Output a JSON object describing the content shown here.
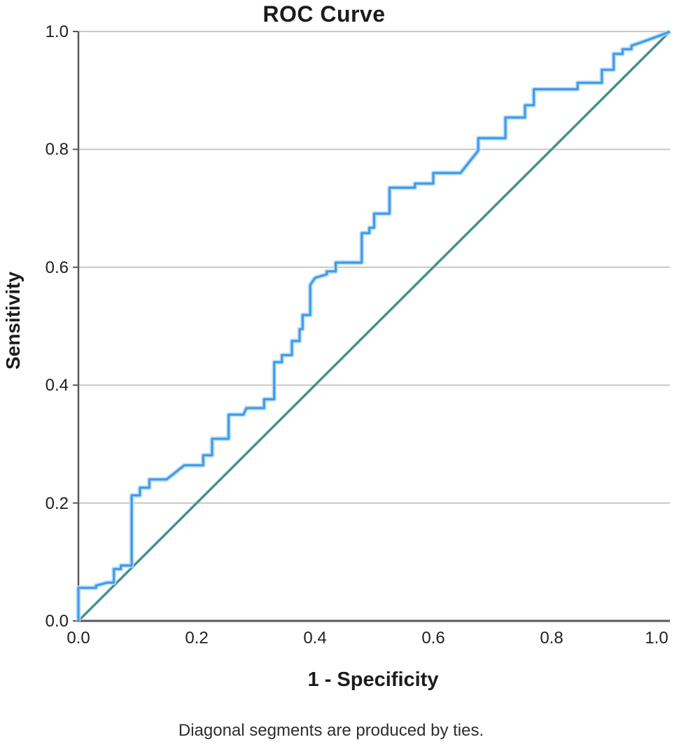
{
  "title": "ROC Curve",
  "footnote": "Diagonal segments are produced by ties.",
  "colors": {
    "roc_line": "#3f9be8",
    "roc_halo": "#b8dcf8",
    "reference_line": "#3e8984",
    "reference_halo": "#9fc8c5",
    "gridline": "#c7c7c9",
    "axis_line": "#57585a",
    "text": "#1c1c1c",
    "background": "#ffffff"
  },
  "chart_data": {
    "type": "line",
    "title": "ROC Curve",
    "xlabel": "1 - Specificity",
    "ylabel": "Sensitivity",
    "footnote": "Diagonal segments are produced by ties.",
    "xlim": [
      0.0,
      1.0
    ],
    "ylim": [
      0.0,
      1.0
    ],
    "x_ticks": [
      0.0,
      0.2,
      0.4,
      0.6,
      0.8,
      1.0
    ],
    "y_ticks": [
      0.0,
      0.2,
      0.4,
      0.6,
      0.8,
      1.0
    ],
    "x_tick_labels": [
      "0.0",
      "0.2",
      "0.4",
      "0.6",
      "0.8",
      "1.0"
    ],
    "y_tick_labels": [
      "0.0",
      "0.2",
      "0.4",
      "0.6",
      "0.8",
      "1.0"
    ],
    "grid": "horizontal gridlines at y ticks",
    "legend": "none",
    "series": [
      {
        "name": "ROC curve (step function)",
        "color": "#3f9be8",
        "points": [
          [
            0.0,
            0.0
          ],
          [
            0.0,
            0.056
          ],
          [
            0.03,
            0.056
          ],
          [
            0.03,
            0.06
          ],
          [
            0.049,
            0.065
          ],
          [
            0.06,
            0.065
          ],
          [
            0.06,
            0.088
          ],
          [
            0.072,
            0.088
          ],
          [
            0.072,
            0.094
          ],
          [
            0.09,
            0.094
          ],
          [
            0.09,
            0.213
          ],
          [
            0.104,
            0.213
          ],
          [
            0.104,
            0.226
          ],
          [
            0.12,
            0.226
          ],
          [
            0.12,
            0.24
          ],
          [
            0.149,
            0.24
          ],
          [
            0.179,
            0.264
          ],
          [
            0.211,
            0.264
          ],
          [
            0.211,
            0.281
          ],
          [
            0.226,
            0.281
          ],
          [
            0.226,
            0.309
          ],
          [
            0.254,
            0.309
          ],
          [
            0.254,
            0.35
          ],
          [
            0.279,
            0.35
          ],
          [
            0.284,
            0.361
          ],
          [
            0.314,
            0.361
          ],
          [
            0.314,
            0.376
          ],
          [
            0.331,
            0.376
          ],
          [
            0.331,
            0.439
          ],
          [
            0.344,
            0.439
          ],
          [
            0.344,
            0.451
          ],
          [
            0.361,
            0.451
          ],
          [
            0.361,
            0.475
          ],
          [
            0.374,
            0.475
          ],
          [
            0.374,
            0.495
          ],
          [
            0.379,
            0.495
          ],
          [
            0.379,
            0.519
          ],
          [
            0.392,
            0.519
          ],
          [
            0.392,
            0.57
          ],
          [
            0.4,
            0.582
          ],
          [
            0.42,
            0.588
          ],
          [
            0.42,
            0.593
          ],
          [
            0.435,
            0.593
          ],
          [
            0.435,
            0.608
          ],
          [
            0.479,
            0.608
          ],
          [
            0.479,
            0.658
          ],
          [
            0.492,
            0.658
          ],
          [
            0.492,
            0.667
          ],
          [
            0.5,
            0.667
          ],
          [
            0.5,
            0.691
          ],
          [
            0.526,
            0.691
          ],
          [
            0.526,
            0.735
          ],
          [
            0.569,
            0.735
          ],
          [
            0.569,
            0.742
          ],
          [
            0.6,
            0.742
          ],
          [
            0.6,
            0.76
          ],
          [
            0.646,
            0.76
          ],
          [
            0.676,
            0.798
          ],
          [
            0.676,
            0.819
          ],
          [
            0.722,
            0.819
          ],
          [
            0.722,
            0.854
          ],
          [
            0.755,
            0.854
          ],
          [
            0.755,
            0.875
          ],
          [
            0.77,
            0.875
          ],
          [
            0.77,
            0.902
          ],
          [
            0.844,
            0.902
          ],
          [
            0.844,
            0.913
          ],
          [
            0.885,
            0.913
          ],
          [
            0.885,
            0.935
          ],
          [
            0.905,
            0.935
          ],
          [
            0.905,
            0.962
          ],
          [
            0.92,
            0.962
          ],
          [
            0.92,
            0.97
          ],
          [
            0.935,
            0.97
          ],
          [
            0.935,
            0.976
          ],
          [
            0.95,
            0.981
          ],
          [
            0.988,
            0.995
          ],
          [
            1.0,
            1.0
          ]
        ]
      },
      {
        "name": "Reference diagonal",
        "color": "#3e8984",
        "points": [
          [
            0.0,
            0.0
          ],
          [
            1.0,
            1.0
          ]
        ]
      }
    ]
  }
}
